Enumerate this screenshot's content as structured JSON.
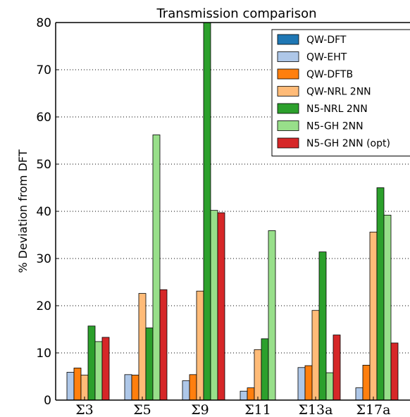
{
  "chart_data": {
    "type": "bar",
    "title": "Transmission comparison",
    "ylabel": "% Deviation from DFT",
    "xlabel": "",
    "ylim": [
      0,
      80
    ],
    "yticks": [
      0,
      10,
      20,
      30,
      40,
      50,
      60,
      70,
      80
    ],
    "grid": "horizontal dotted",
    "legend_position": "top-right",
    "categories": [
      "Σ3",
      "Σ5",
      "Σ9",
      "Σ11",
      "Σ13a",
      "Σ17a"
    ],
    "series": [
      {
        "name": "QW-DFT",
        "color": "#1f77b4",
        "values": [
          0,
          0,
          0,
          0,
          0,
          0
        ]
      },
      {
        "name": "QW-EHT",
        "color": "#aec7e8",
        "values": [
          5.9,
          5.4,
          4.1,
          1.9,
          6.9,
          2.6
        ]
      },
      {
        "name": "QW-DFTB",
        "color": "#ff7f0e",
        "values": [
          6.8,
          5.3,
          5.4,
          2.6,
          7.3,
          7.4
        ]
      },
      {
        "name": "QW-NRL 2NN",
        "color": "#ffbb78",
        "values": [
          5.3,
          22.6,
          23.1,
          10.7,
          19.0,
          35.6
        ]
      },
      {
        "name": "N5-NRL 2NN",
        "color": "#2ca02c",
        "values": [
          15.7,
          15.3,
          80.0,
          13.0,
          31.4,
          45.0
        ]
      },
      {
        "name": "N5-GH 2NN",
        "color": "#98df8a",
        "values": [
          12.4,
          56.2,
          40.2,
          35.9,
          5.8,
          39.2
        ]
      },
      {
        "name": "N5-GH 2NN (opt)",
        "color": "#d62728",
        "values": [
          13.3,
          23.4,
          39.7,
          0,
          13.8,
          12.1
        ]
      }
    ]
  }
}
